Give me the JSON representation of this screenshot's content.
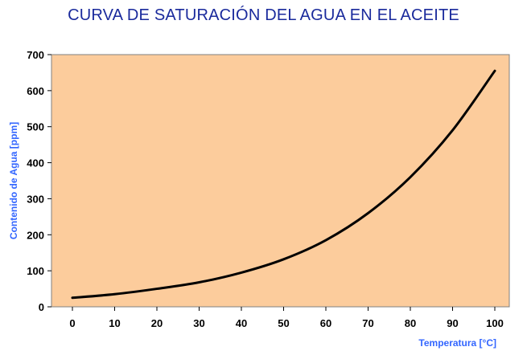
{
  "colors": {
    "title": "#1a2a9c",
    "axis_label": "#3366ff",
    "plot_background": "#fccc9c",
    "curve": "#000000"
  },
  "chart_data": {
    "type": "line",
    "title": "CURVA DE SATURACIÓN DEL AGUA EN EL ACEITE",
    "xlabel": "Temperatura [°C]",
    "ylabel": "Contenido de Agua [ppm]",
    "xlim": [
      0,
      100
    ],
    "ylim": [
      0,
      700
    ],
    "x_ticks": [
      "0",
      "10",
      "20",
      "30",
      "40",
      "50",
      "60",
      "70",
      "80",
      "90",
      "100"
    ],
    "y_ticks": [
      "0",
      "100",
      "200",
      "300",
      "400",
      "500",
      "600",
      "700"
    ],
    "grid": false,
    "legend": "none",
    "series": [
      {
        "x": [
          0,
          10,
          20,
          30,
          40,
          50,
          60,
          70,
          80,
          90,
          100
        ],
        "y": [
          25,
          35,
          50,
          68,
          95,
          132,
          185,
          260,
          360,
          490,
          655
        ]
      }
    ]
  }
}
